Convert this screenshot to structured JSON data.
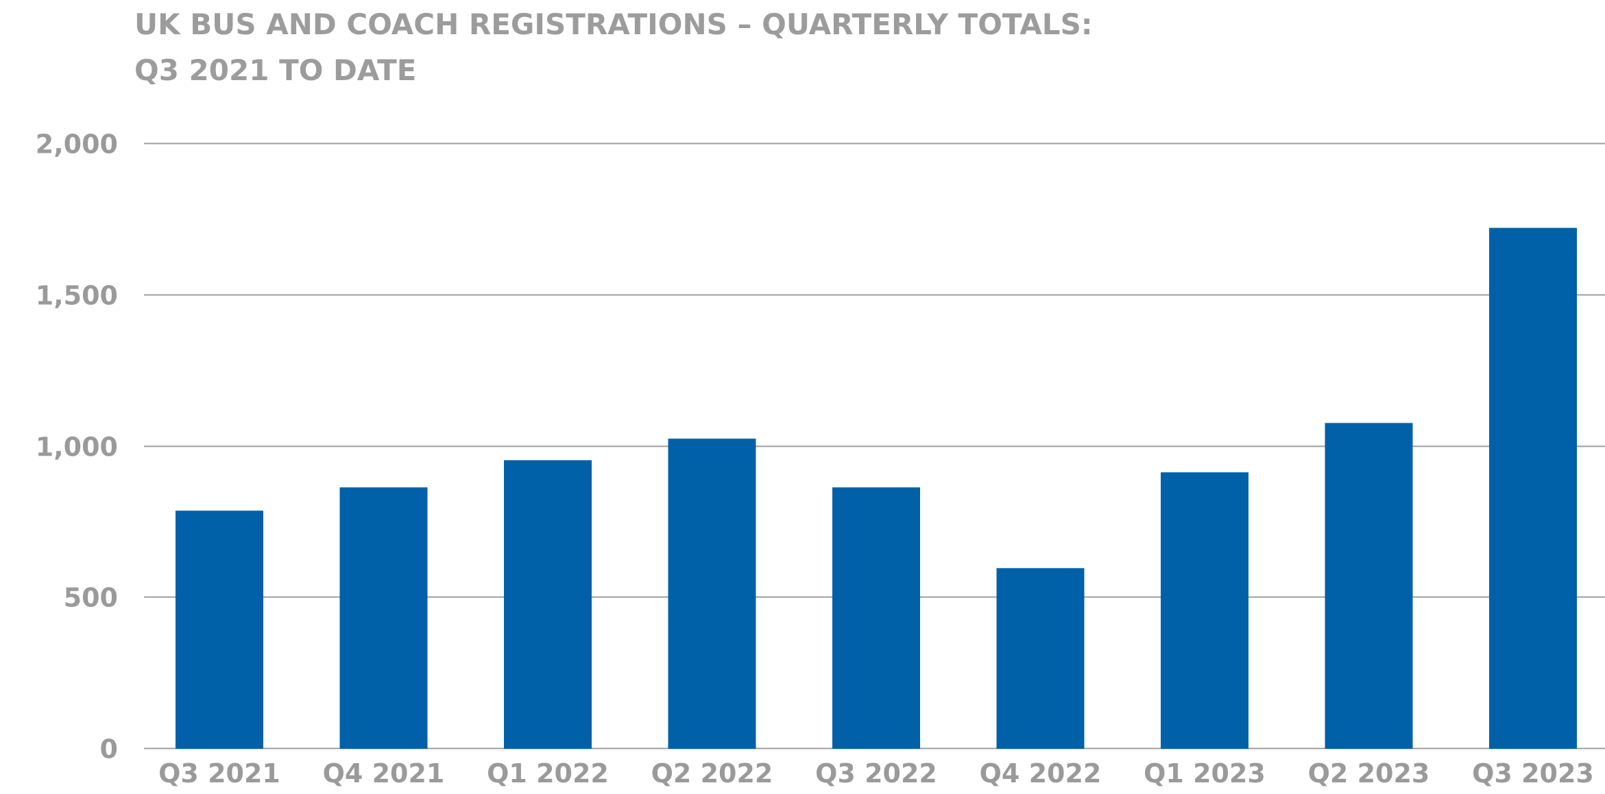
{
  "chart_data": {
    "type": "bar",
    "title": [
      "UK BUS AND COACH REGISTRATIONS – QUARTERLY TOTALS:",
      "Q3 2021 TO DATE"
    ],
    "categories": [
      "Q3 2021",
      "Q4 2021",
      "Q1 2022",
      "Q2 2022",
      "Q3 2022",
      "Q4 2022",
      "Q1 2023",
      "Q2 2023",
      "Q3 2023"
    ],
    "values": [
      785,
      862,
      952,
      1023,
      862,
      595,
      912,
      1075,
      1720
    ],
    "ylim": [
      0,
      2000
    ],
    "yticks": [
      0,
      500,
      1000,
      1500,
      2000
    ],
    "ytick_labels": [
      "0",
      "500",
      "1,000",
      "1,500",
      "2,000"
    ],
    "grid": true,
    "legend": "none",
    "bar_color": "#0061a8",
    "grid_color": "#9e9e9e",
    "text_color": "#9a9a9a"
  }
}
